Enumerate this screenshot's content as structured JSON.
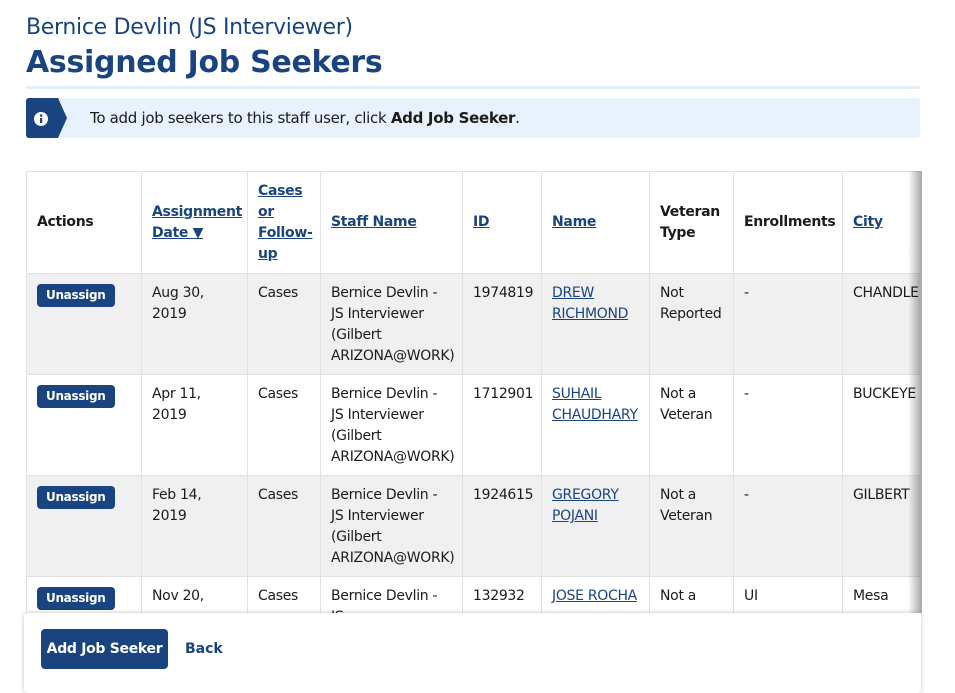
{
  "header": {
    "subtitle": "Bernice Devlin (JS Interviewer)",
    "title": "Assigned Job Seekers"
  },
  "alert": {
    "text_before": "To add job seekers to this staff user, click ",
    "bold": "Add Job Seeker",
    "text_after": "."
  },
  "table": {
    "columns": [
      {
        "label": "Actions",
        "link": false
      },
      {
        "label": "Assignment Date ▼",
        "link": true
      },
      {
        "label": "Cases or Follow-up",
        "link": true
      },
      {
        "label": "Staff Name",
        "link": true
      },
      {
        "label": "ID",
        "link": true
      },
      {
        "label": "Name",
        "link": true
      },
      {
        "label": "Veteran Type",
        "link": false
      },
      {
        "label": "Enrollments",
        "link": false
      },
      {
        "label": "City",
        "link": true
      }
    ],
    "rows": [
      [
        "Unassign",
        "Aug 30, 2019",
        "Cases",
        "Bernice Devlin - JS Interviewer (Gilbert ARIZONA@WORK)",
        "1974819",
        "DREW RICHMOND",
        "Not Reported",
        "-",
        "CHANDLER"
      ],
      [
        "Unassign",
        "Apr 11, 2019",
        "Cases",
        "Bernice Devlin - JS Interviewer (Gilbert ARIZONA@WORK)",
        "1712901",
        "SUHAIL CHAUDHARY",
        "Not a Veteran",
        "-",
        "BUCKEYE"
      ],
      [
        "Unassign",
        "Feb 14, 2019",
        "Cases",
        "Bernice Devlin - JS Interviewer (Gilbert ARIZONA@WORK)",
        "1924615",
        "GREGORY POJANI",
        "Not a Veteran",
        "-",
        "GILBERT"
      ],
      [
        "Unassign",
        "Nov 20,",
        "Cases",
        "Bernice Devlin - JS",
        "132932",
        "JOSE ROCHA",
        "Not a",
        "UI",
        "Mesa"
      ]
    ]
  },
  "footer": {
    "primary": "Add Job Seeker",
    "secondary": "Back"
  }
}
